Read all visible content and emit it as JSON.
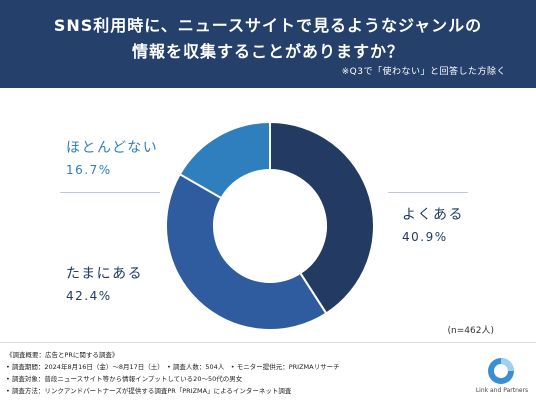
{
  "header": {
    "title_line1": "SNS利用時に、ニュースサイトで見るようなジャンルの",
    "title_line2": "情報を収集することがありますか？",
    "note": "※Q3で「使わない」と回答した方除く"
  },
  "sample": "(n=462人)",
  "footer": {
    "line1": "《調査概要：広告とPRに関する調査》",
    "line2": "• 調査期間：2024年8月16日（金）〜8月17日（土）　• 調査人数：504人　• モニター提供元：PRIZMAリサーチ",
    "line3": "• 調査対象：普段ニュースサイト等から情報インプットしている20〜50代の男女",
    "line4": "• 調査方法：リンクアンドパートナーズが提供する調査PR「PRIZMA」によるインターネット調査",
    "logo_text": "Link and Partners"
  },
  "colors": {
    "header_bg": "#25406b",
    "slice_yoku": "#233b62",
    "slice_tama": "#2e5c9e",
    "slice_hotondo": "#2f7fbf"
  },
  "chart_data": {
    "type": "pie",
    "donut": true,
    "title": "SNS利用時に、ニュースサイトで見るようなジャンルの情報を収集することがありますか？",
    "categories": [
      "よくある",
      "たまにある",
      "ほとんどない"
    ],
    "values": [
      40.9,
      42.4,
      16.7
    ],
    "labels": [
      "40.9%",
      "42.4%",
      "16.7%"
    ],
    "start": "12 o'clock",
    "direction": "clockwise",
    "legend": "none"
  }
}
